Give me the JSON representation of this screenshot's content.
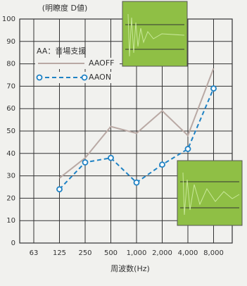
{
  "chart_data": {
    "type": "line",
    "title": "(明瞭度 D値)",
    "legend_title": "AA：音場支援",
    "x_label": "周波数(Hz)",
    "categories": [
      "63",
      "125",
      "250",
      "500",
      "1,000",
      "2,000",
      "4,000",
      "8,000"
    ],
    "series": [
      {
        "name": "AAOFF",
        "color": "#b9a9a4",
        "dashed": false,
        "markers": false,
        "values": [
          null,
          29,
          38,
          52,
          49,
          59,
          48,
          78
        ]
      },
      {
        "name": "AAON",
        "color": "#1f82c4",
        "dashed": true,
        "markers": true,
        "values": [
          null,
          24,
          36,
          38,
          27,
          35,
          42,
          69
        ]
      }
    ],
    "ylim": [
      0,
      100
    ],
    "yticks": [
      0,
      10,
      20,
      30,
      40,
      50,
      60,
      70,
      80,
      90,
      100
    ],
    "grid": true
  }
}
